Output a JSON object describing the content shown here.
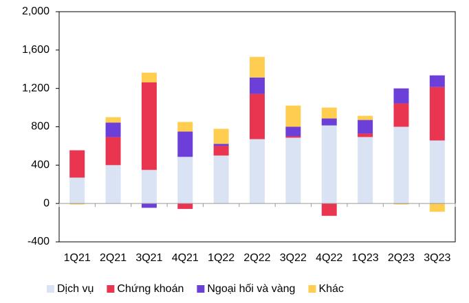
{
  "chart_data": {
    "type": "stacked_bar",
    "categories": [
      "1Q21",
      "2Q21",
      "3Q21",
      "4Q21",
      "1Q22",
      "2Q22",
      "3Q22",
      "4Q22",
      "1Q23",
      "2Q23",
      "3Q23"
    ],
    "series": [
      {
        "name": "Dịch vụ",
        "color": "#dae3f3",
        "values": [
          270,
          400,
          350,
          486,
          500,
          671,
          686,
          814,
          693,
          800,
          657
        ]
      },
      {
        "name": "Chứng khoán",
        "color": "#ea3550",
        "values": [
          285,
          293,
          914,
          -57,
          100,
          472,
          14,
          -129,
          36,
          243,
          557
        ]
      },
      {
        "name": "Ngoại hối và vàng",
        "color": "#6b3fd8",
        "values": [
          0,
          150,
          -45,
          264,
          21,
          171,
          100,
          72,
          142,
          157,
          122
        ]
      },
      {
        "name": "Khác",
        "color": "#ffcd4f",
        "values": [
          -10,
          57,
          100,
          100,
          158,
          215,
          221,
          114,
          43,
          -10,
          -86
        ]
      }
    ],
    "ylim": [
      -400,
      2000
    ],
    "yticks": [
      -400,
      0,
      400,
      800,
      {
        "value": 1200,
        "label": "1,200"
      },
      {
        "value": 1600,
        "label": "1,600"
      },
      {
        "value": 2000,
        "label": "2,000"
      }
    ],
    "legend": "bottom"
  }
}
